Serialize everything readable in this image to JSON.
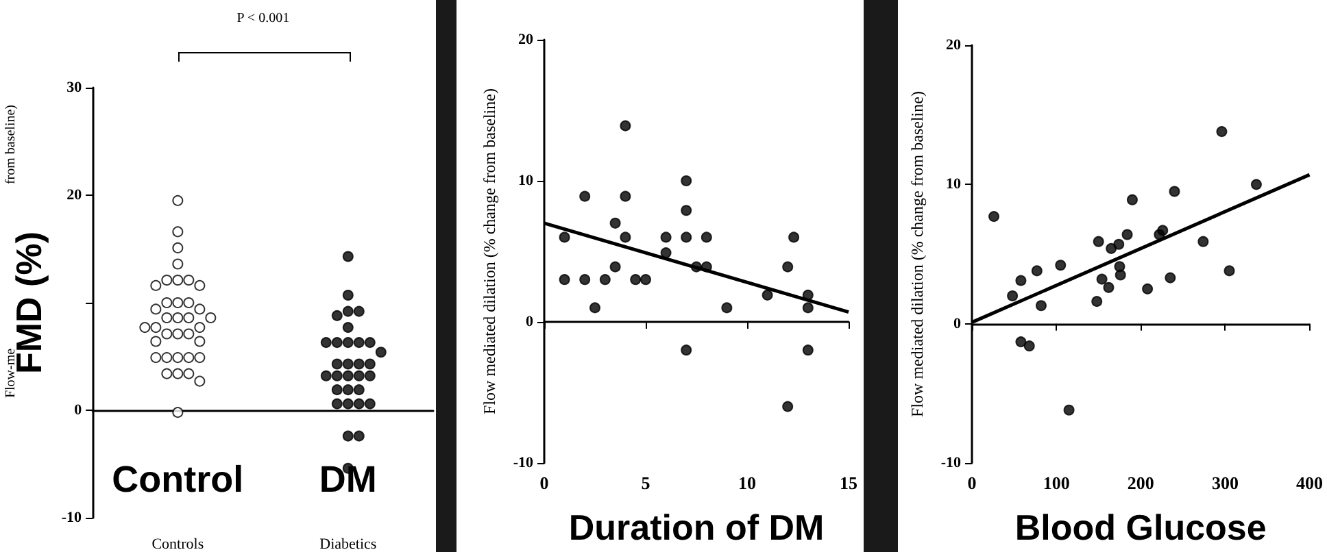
{
  "chart_data": [
    {
      "type": "scatter",
      "ylabel": "FMD (%)",
      "categories": [
        "Controls",
        "Diabetics"
      ],
      "ylim": [
        -10,
        30
      ],
      "yticks": [
        -10,
        0,
        {
          "value": 10,
          "label": null
        },
        20,
        30
      ],
      "marker": "circle",
      "annotations": [
        "P < 0.001",
        "Control",
        "DM",
        "Flow-me",
        "from baseline)"
      ],
      "series": [
        {
          "color": "#ffffff",
          "x": [
            "Controls",
            "Controls",
            "Controls",
            "Controls",
            "Controls",
            "Controls",
            "Controls",
            "Controls",
            "Controls",
            "Controls",
            "Controls",
            "Controls",
            "Controls",
            "Controls",
            "Controls",
            "Controls",
            "Controls",
            "Controls",
            "Controls",
            "Controls",
            "Controls",
            "Controls",
            "Controls",
            "Controls",
            "Controls",
            "Controls",
            "Controls",
            "Controls",
            "Controls",
            "Controls",
            "Controls",
            "Controls",
            "Controls",
            "Controls",
            "Controls",
            "Controls"
          ],
          "values": [
            19.5,
            16.6,
            15.1,
            13.6,
            12.1,
            12.1,
            12.1,
            11.6,
            11.6,
            10.0,
            10.0,
            10.0,
            9.4,
            9.4,
            8.6,
            8.6,
            8.6,
            8.6,
            7.7,
            7.7,
            7.7,
            7.1,
            7.1,
            7.1,
            6.4,
            6.4,
            4.9,
            4.9,
            4.9,
            4.9,
            4.9,
            3.4,
            3.4,
            3.4,
            2.7,
            -0.2
          ]
        },
        {
          "color": "#000000",
          "x": [
            "Diabetics",
            "Diabetics",
            "Diabetics",
            "Diabetics",
            "Diabetics",
            "Diabetics",
            "Diabetics",
            "Diabetics",
            "Diabetics",
            "Diabetics",
            "Diabetics",
            "Diabetics",
            "Diabetics",
            "Diabetics",
            "Diabetics",
            "Diabetics",
            "Diabetics",
            "Diabetics",
            "Diabetics",
            "Diabetics",
            "Diabetics",
            "Diabetics",
            "Diabetics",
            "Diabetics",
            "Diabetics",
            "Diabetics",
            "Diabetics",
            "Diabetics",
            "Diabetics",
            "Diabetics",
            "Diabetics"
          ],
          "values": [
            14.3,
            10.7,
            9.2,
            9.2,
            8.8,
            7.7,
            6.3,
            6.3,
            6.3,
            6.3,
            6.3,
            5.4,
            4.3,
            4.3,
            4.3,
            4.3,
            3.2,
            3.2,
            3.2,
            3.2,
            3.2,
            1.9,
            1.9,
            0.6,
            0.6,
            0.6,
            0.6,
            -2.4,
            -2.4,
            -5.4,
            1.9
          ]
        }
      ]
    },
    {
      "type": "scatter",
      "xlabel": "Duration of DM",
      "ylabel": "Flow mediated dilation (% change from baseline)",
      "xlim": [
        0,
        15
      ],
      "xticks": [
        0,
        5,
        10,
        15
      ],
      "ylim": [
        -10,
        20
      ],
      "yticks": [
        -10,
        0,
        10,
        20
      ],
      "marker": "circle",
      "series": [
        {
          "color": "#000000",
          "x": [
            1,
            1,
            2,
            2,
            2.5,
            3,
            3.5,
            3.5,
            4,
            4,
            4,
            4.5,
            5,
            6,
            6,
            7,
            7,
            7,
            7,
            7.5,
            8,
            8,
            9,
            11,
            12,
            12,
            12.3,
            13,
            13,
            13
          ],
          "values": [
            6.0,
            3.0,
            8.9,
            3.0,
            1.0,
            3.0,
            7.0,
            3.9,
            13.9,
            8.9,
            6.0,
            3.0,
            3.0,
            6.0,
            4.9,
            10.0,
            7.9,
            6.0,
            -2.0,
            3.9,
            6.0,
            3.9,
            1.0,
            1.9,
            3.9,
            -6.0,
            6.0,
            1.9,
            1.0,
            -2.0
          ]
        },
        {
          "type": "line",
          "marker": "none",
          "color": "#000000",
          "x": [
            0,
            15
          ],
          "values": [
            7.0,
            0.7
          ]
        }
      ]
    },
    {
      "type": "scatter",
      "xlabel": "Blood Glucose",
      "ylabel": "Flow mediated dilation (% change from baseline)",
      "xlim": [
        0,
        400
      ],
      "xticks": [
        0,
        100,
        200,
        300,
        400
      ],
      "ylim": [
        -10,
        20
      ],
      "yticks": [
        -10,
        0,
        10,
        20
      ],
      "marker": "circle",
      "series": [
        {
          "color": "#000000",
          "x": [
            26,
            48,
            58,
            58,
            68,
            77,
            82,
            105,
            115,
            148,
            150,
            154,
            162,
            165,
            174,
            175,
            176,
            184,
            190,
            208,
            222,
            226,
            235,
            240,
            274,
            296,
            305,
            337
          ],
          "values": [
            7.7,
            2.0,
            3.1,
            -1.3,
            -1.6,
            3.8,
            1.3,
            4.2,
            -6.2,
            1.6,
            5.9,
            3.2,
            2.6,
            5.4,
            5.7,
            4.1,
            3.5,
            6.4,
            8.9,
            2.5,
            6.4,
            6.7,
            3.3,
            9.5,
            5.9,
            13.8,
            3.8,
            10.0
          ]
        },
        {
          "type": "line",
          "marker": "none",
          "color": "#000000",
          "x": [
            0,
            400
          ],
          "values": [
            0.1,
            10.7
          ]
        }
      ]
    }
  ]
}
